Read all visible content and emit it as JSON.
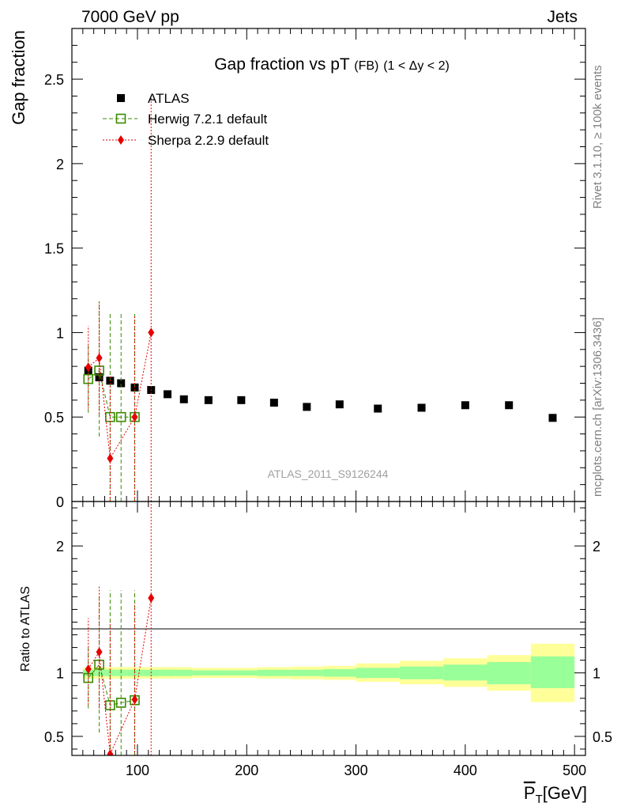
{
  "header": {
    "left": "7000 GeV pp",
    "right": "Jets"
  },
  "side_texts": {
    "rivet": "Rivet 3.1.10, ≥ 100k events",
    "mcplots": "mcplots.cern.ch [arXiv:1306.3436]"
  },
  "analysis_id": "ATLAS_2011_S9126244",
  "chart_data": {
    "type": "scatter",
    "title": "Gap fraction vs pT",
    "title_sub": "(FB)",
    "title_range": "(1 < Δy < 2)",
    "xlabel_main": "P",
    "xlabel_sub": "T",
    "xlabel_unit": "[GeV]",
    "ylabel": "Gap fraction",
    "ratio_ylabel": "Ratio to ATLAS",
    "xlim": [
      40,
      510
    ],
    "ylim": [
      0,
      2.8
    ],
    "ratio_ylim": [
      0.35,
      2.35
    ],
    "x_ticks": [
      100,
      200,
      300,
      400,
      500
    ],
    "y_ticks": [
      0.5,
      1,
      1.5,
      2,
      2.5
    ],
    "y_tick_labels": [
      "0.5",
      "1",
      "1.5",
      "2",
      "2.5"
    ],
    "y_zero_label": "0",
    "ratio_ticks": [
      0.5,
      1,
      2
    ],
    "ratio_tick_labels": [
      "0.5",
      "1",
      "2"
    ],
    "legend_position": "top-left",
    "series": [
      {
        "name": "ATLAS",
        "style": "data",
        "color": "#000000",
        "x": [
          55,
          65,
          75,
          85,
          97.5,
          112.5,
          127.5,
          142.5,
          165,
          195,
          225,
          255,
          285,
          320,
          360,
          400,
          440,
          480
        ],
        "y": [
          0.775,
          0.735,
          0.715,
          0.7,
          0.675,
          0.66,
          0.635,
          0.605,
          0.6,
          0.6,
          0.585,
          0.56,
          0.575,
          0.55,
          0.555,
          0.57,
          0.57,
          0.495
        ]
      },
      {
        "name": "Herwig 7.2.1 default",
        "style": "dashed",
        "color": "#3a8a00",
        "x": [
          55,
          65,
          75,
          85,
          97.5
        ],
        "y": [
          0.725,
          0.775,
          0.5,
          0.5,
          0.5
        ],
        "err_low": [
          0.525,
          0.385,
          0,
          0,
          0
        ],
        "err_high": [
          0.935,
          1.185,
          1.11,
          1.11,
          1.11
        ]
      },
      {
        "name": "Sherpa 2.2.9 default",
        "style": "dotted",
        "color": "#e60000",
        "x": [
          55,
          65,
          75,
          97.5,
          112.5
        ],
        "y": [
          0.795,
          0.85,
          0.255,
          0.5,
          1.0
        ],
        "err_low": [
          0.55,
          0.52,
          0,
          0,
          0
        ],
        "err_high": [
          1.04,
          1.18,
          0.74,
          1.1,
          2.4
        ]
      }
    ],
    "ratio_series": [
      {
        "name": "Herwig 7.2.1 default",
        "color": "#3a8a00",
        "x": [
          55,
          65,
          75,
          85,
          97.5
        ],
        "y": [
          0.96,
          1.065,
          0.745,
          0.765,
          0.785
        ],
        "err_low": [
          0.72,
          0.53,
          0.2,
          0.2,
          0.2
        ],
        "err_high": [
          1.2,
          1.6,
          1.65,
          1.65,
          1.65
        ]
      },
      {
        "name": "Sherpa 2.2.9 default",
        "color": "#e60000",
        "x": [
          55,
          65,
          75,
          97.5,
          112.5
        ],
        "y": [
          1.03,
          1.165,
          0.36,
          0.79,
          1.59
        ],
        "err_low": [
          0.75,
          0.72,
          0.1,
          0.1,
          0.1
        ],
        "err_high": [
          1.43,
          1.69,
          1.4,
          1.55,
          2.4
        ]
      }
    ],
    "ratio_bands": {
      "x_edges": [
        50,
        60,
        70,
        80,
        90,
        105,
        120,
        135,
        150,
        180,
        210,
        240,
        270,
        300,
        340,
        380,
        420,
        460,
        500
      ],
      "yellow_low": [
        0.955,
        0.955,
        0.955,
        0.955,
        0.955,
        0.955,
        0.955,
        0.955,
        0.96,
        0.96,
        0.955,
        0.95,
        0.945,
        0.93,
        0.91,
        0.89,
        0.86,
        0.77
      ],
      "yellow_high": [
        1.045,
        1.045,
        1.045,
        1.045,
        1.045,
        1.045,
        1.045,
        1.045,
        1.04,
        1.04,
        1.045,
        1.05,
        1.055,
        1.075,
        1.095,
        1.115,
        1.14,
        1.23
      ],
      "green_low": [
        0.975,
        0.975,
        0.975,
        0.975,
        0.975,
        0.975,
        0.975,
        0.975,
        0.98,
        0.98,
        0.975,
        0.975,
        0.97,
        0.96,
        0.95,
        0.94,
        0.91,
        0.88
      ],
      "green_high": [
        1.025,
        1.025,
        1.025,
        1.025,
        1.025,
        1.025,
        1.025,
        1.025,
        1.02,
        1.02,
        1.025,
        1.025,
        1.03,
        1.04,
        1.05,
        1.065,
        1.085,
        1.13
      ],
      "yellow_color": "#ffff99",
      "green_color": "#99ff99"
    }
  }
}
